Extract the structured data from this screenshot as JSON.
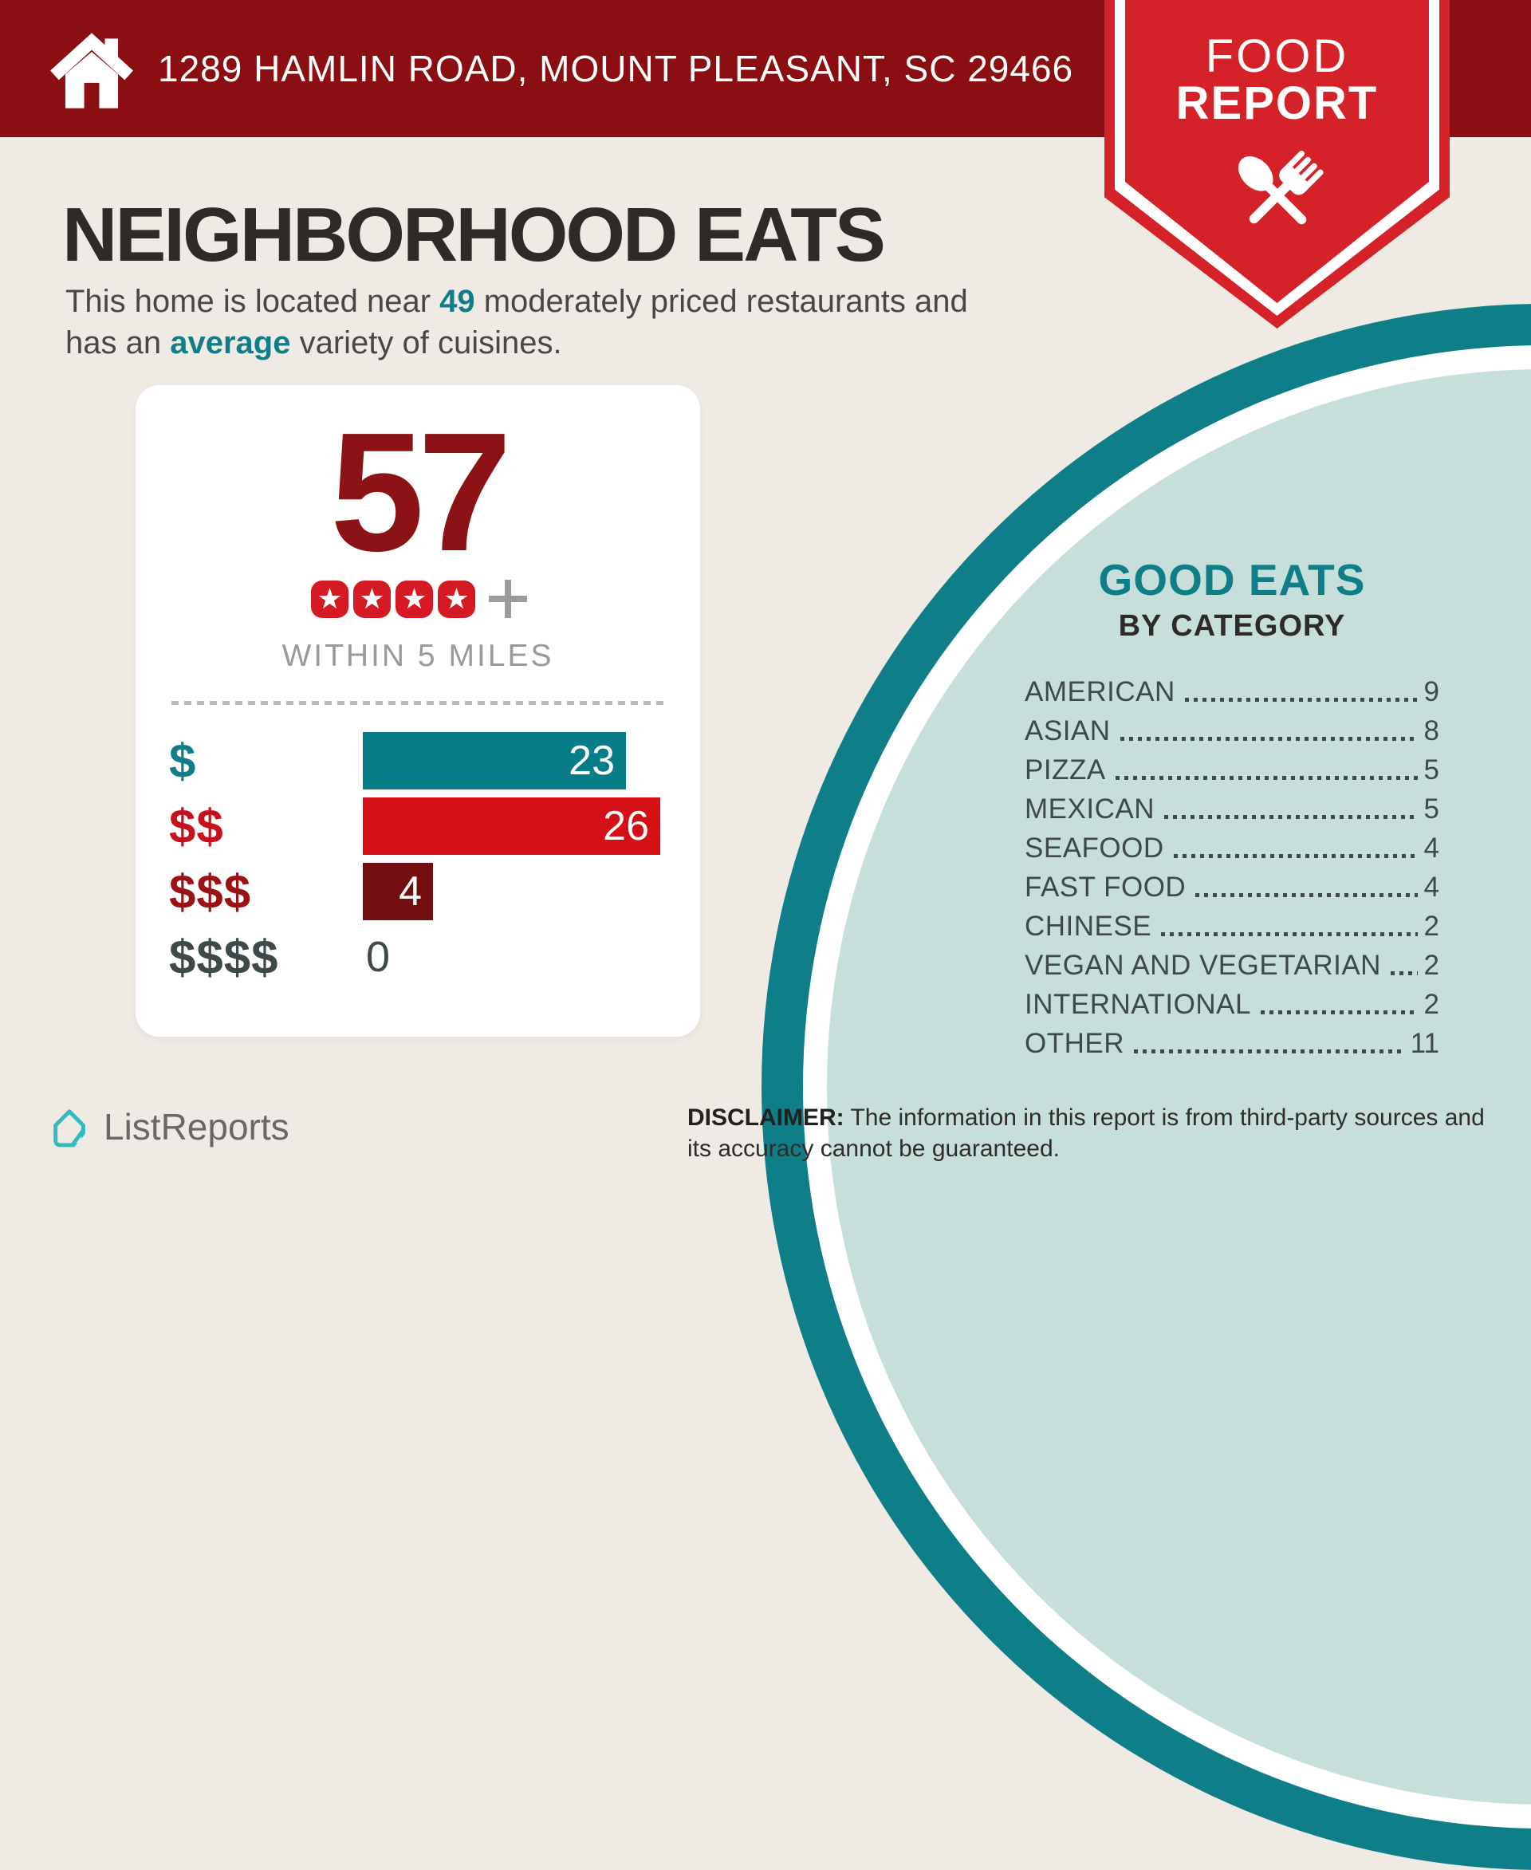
{
  "header": {
    "address": "1289 HAMLIN ROAD, MOUNT PLEASANT, SC 29466",
    "bg_color": "#8A0E12"
  },
  "ribbon": {
    "line1": "FOOD",
    "line2": "REPORT",
    "bg_color": "#D52128"
  },
  "intro": {
    "title": "NEIGHBORHOOD EATS",
    "line1_pre": "This home is located near ",
    "line1_count": "49",
    "line1_post": " moderately priced restaurants and",
    "line2_pre": "has an ",
    "line2_accent": "average",
    "line2_post": " variety of cuisines."
  },
  "score_card": {
    "score": "57",
    "star_count": 4,
    "plus": "+",
    "within_label": "WITHIN 5 MILES"
  },
  "chart_data": [
    {
      "type": "bar",
      "title": "Restaurants by price tier within 5 miles",
      "categories": [
        "$",
        "$$",
        "$$$",
        "$$$$"
      ],
      "values": [
        23,
        26,
        4,
        0
      ],
      "bar_colors": [
        "#077E87",
        "#D50F16",
        "#730D10",
        null
      ],
      "label_colors": [
        "#0F7E89",
        "#C8101D",
        "#9A1215",
        "#3D4A49"
      ],
      "xlim": [
        0,
        26
      ],
      "orientation": "horizontal",
      "value_labels": "inside-end"
    },
    {
      "type": "table",
      "title": "GOOD EATS BY CATEGORY",
      "categories": [
        "AMERICAN",
        "ASIAN",
        "PIZZA",
        "MEXICAN",
        "SEAFOOD",
        "FAST FOOD",
        "CHINESE",
        "VEGAN AND VEGETARIAN",
        "INTERNATIONAL",
        "OTHER"
      ],
      "values": [
        9,
        8,
        5,
        5,
        4,
        4,
        2,
        2,
        2,
        11
      ]
    }
  ],
  "good_eats": {
    "title": "GOOD EATS",
    "subtitle": "BY CATEGORY"
  },
  "footer": {
    "brand": "ListReports",
    "disclaimer_label": "DISCLAIMER:",
    "disclaimer_text": " The information in this report is from third-party sources and its accuracy cannot be guaranteed."
  },
  "colors": {
    "page_bg": "#EFEAE4",
    "header_maroon": "#8A0E12",
    "ribbon_red": "#D52128",
    "teal": "#0E7E88",
    "inner_circle": "#C7DFDB",
    "score_maroon": "#8C1215",
    "star_red": "#D61A23",
    "dark_slate": "#3D4A49",
    "logo_teal": "#2EBCBE"
  }
}
